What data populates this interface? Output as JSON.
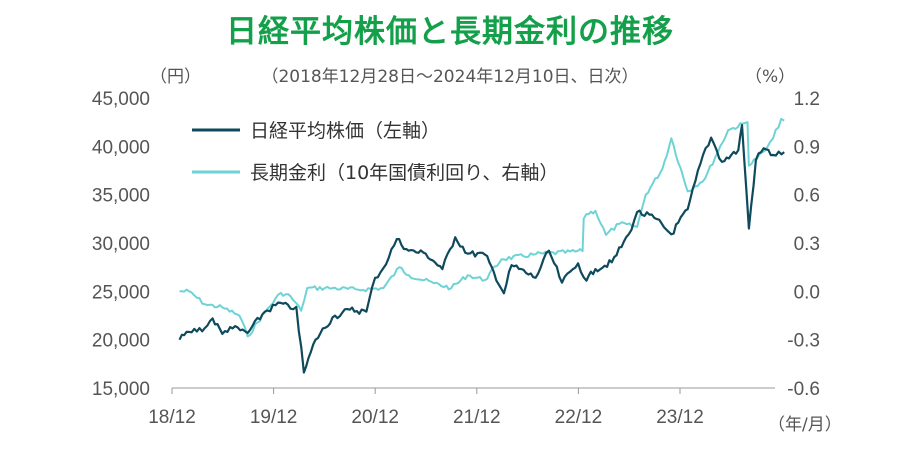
{
  "chart_data": {
    "type": "line",
    "title": "日経平均株価と長期金利の推移",
    "subtitle": "（2018年12月28日～2024年12月10日、日次）",
    "ylabel_left": "（円）",
    "ylabel_right": "（%）",
    "xlabel": "（年/月）",
    "x_ticks": [
      "18/12",
      "19/12",
      "20/12",
      "21/12",
      "22/12",
      "23/12"
    ],
    "left_axis": {
      "ticks": [
        "15,000",
        "20,000",
        "25,000",
        "30,000",
        "35,000",
        "40,000",
        "45,000"
      ],
      "ylim": [
        15000,
        45000
      ]
    },
    "right_axis": {
      "ticks": [
        "-0.6",
        "-0.3",
        "0.0",
        "0.3",
        "0.6",
        "0.9",
        "1.2"
      ],
      "ylim": [
        -0.6,
        1.2
      ]
    },
    "x_range": [
      "2018-12-28",
      "2024-12-10"
    ],
    "grid": false,
    "legend_position": "top-left",
    "series": [
      {
        "name": "日経平均株価（左軸）",
        "axis": "left",
        "color": "#0f4a5c",
        "points": [
          [
            "2018-12-28",
            20000
          ],
          [
            "2019-01-31",
            20800
          ],
          [
            "2019-03-29",
            21200
          ],
          [
            "2019-04-26",
            22200
          ],
          [
            "2019-05-31",
            20600
          ],
          [
            "2019-06-28",
            21300
          ],
          [
            "2019-08-30",
            20700
          ],
          [
            "2019-10-31",
            22900
          ],
          [
            "2019-12-27",
            23800
          ],
          [
            "2020-01-31",
            23200
          ],
          [
            "2020-02-21",
            23400
          ],
          [
            "2020-03-19",
            16600
          ],
          [
            "2020-04-30",
            20000
          ],
          [
            "2020-06-30",
            22300
          ],
          [
            "2020-08-31",
            23100
          ],
          [
            "2020-10-30",
            22900
          ],
          [
            "2020-11-30",
            26400
          ],
          [
            "2020-12-30",
            27400
          ],
          [
            "2021-02-16",
            30400
          ],
          [
            "2021-03-31",
            29200
          ],
          [
            "2021-05-31",
            28900
          ],
          [
            "2021-07-30",
            27300
          ],
          [
            "2021-09-14",
            30600
          ],
          [
            "2021-10-29",
            28900
          ],
          [
            "2021-12-30",
            28800
          ],
          [
            "2022-01-31",
            27000
          ],
          [
            "2022-03-08",
            24800
          ],
          [
            "2022-04-05",
            27700
          ],
          [
            "2022-06-30",
            26400
          ],
          [
            "2022-08-17",
            29200
          ],
          [
            "2022-10-03",
            25900
          ],
          [
            "2022-11-30",
            27900
          ],
          [
            "2022-12-30",
            26100
          ],
          [
            "2023-01-31",
            27300
          ],
          [
            "2023-03-31",
            28000
          ],
          [
            "2023-05-31",
            30900
          ],
          [
            "2023-06-30",
            33200
          ],
          [
            "2023-08-31",
            32600
          ],
          [
            "2023-10-31",
            30900
          ],
          [
            "2023-12-29",
            33500
          ],
          [
            "2024-02-22",
            39100
          ],
          [
            "2024-03-22",
            40900
          ],
          [
            "2024-04-30",
            38400
          ],
          [
            "2024-06-28",
            39600
          ],
          [
            "2024-07-11",
            42200
          ],
          [
            "2024-08-05",
            31500
          ],
          [
            "2024-08-30",
            38600
          ],
          [
            "2024-09-27",
            39800
          ],
          [
            "2024-10-31",
            39100
          ],
          [
            "2024-12-10",
            39400
          ]
        ]
      },
      {
        "name": "長期金利（10年国債利回り、右軸）",
        "axis": "right",
        "color": "#6fd3d6",
        "points": [
          [
            "2018-12-28",
            0.0
          ],
          [
            "2019-01-31",
            0.0
          ],
          [
            "2019-03-29",
            -0.08
          ],
          [
            "2019-05-31",
            -0.1
          ],
          [
            "2019-07-31",
            -0.15
          ],
          [
            "2019-08-30",
            -0.28
          ],
          [
            "2019-10-31",
            -0.13
          ],
          [
            "2019-12-27",
            -0.01
          ],
          [
            "2020-01-31",
            -0.03
          ],
          [
            "2020-03-09",
            -0.12
          ],
          [
            "2020-03-31",
            0.02
          ],
          [
            "2020-06-30",
            0.02
          ],
          [
            "2020-09-30",
            0.01
          ],
          [
            "2020-12-30",
            0.02
          ],
          [
            "2021-02-26",
            0.15
          ],
          [
            "2021-03-31",
            0.1
          ],
          [
            "2021-06-30",
            0.05
          ],
          [
            "2021-08-31",
            0.02
          ],
          [
            "2021-10-29",
            0.1
          ],
          [
            "2021-12-30",
            0.07
          ],
          [
            "2022-02-28",
            0.2
          ],
          [
            "2022-06-30",
            0.23
          ],
          [
            "2022-12-16",
            0.25
          ],
          [
            "2022-12-20",
            0.45
          ],
          [
            "2022-12-30",
            0.48
          ],
          [
            "2023-01-31",
            0.5
          ],
          [
            "2023-03-10",
            0.35
          ],
          [
            "2023-04-28",
            0.42
          ],
          [
            "2023-06-30",
            0.4
          ],
          [
            "2023-07-31",
            0.6
          ],
          [
            "2023-09-29",
            0.76
          ],
          [
            "2023-10-31",
            0.95
          ],
          [
            "2023-12-29",
            0.62
          ],
          [
            "2024-02-29",
            0.7
          ],
          [
            "2024-05-22",
            1.0
          ],
          [
            "2024-07-31",
            1.05
          ],
          [
            "2024-08-05",
            0.78
          ],
          [
            "2024-09-30",
            0.87
          ],
          [
            "2024-10-31",
            0.95
          ],
          [
            "2024-11-29",
            1.07
          ],
          [
            "2024-12-10",
            1.06
          ]
        ]
      }
    ]
  }
}
